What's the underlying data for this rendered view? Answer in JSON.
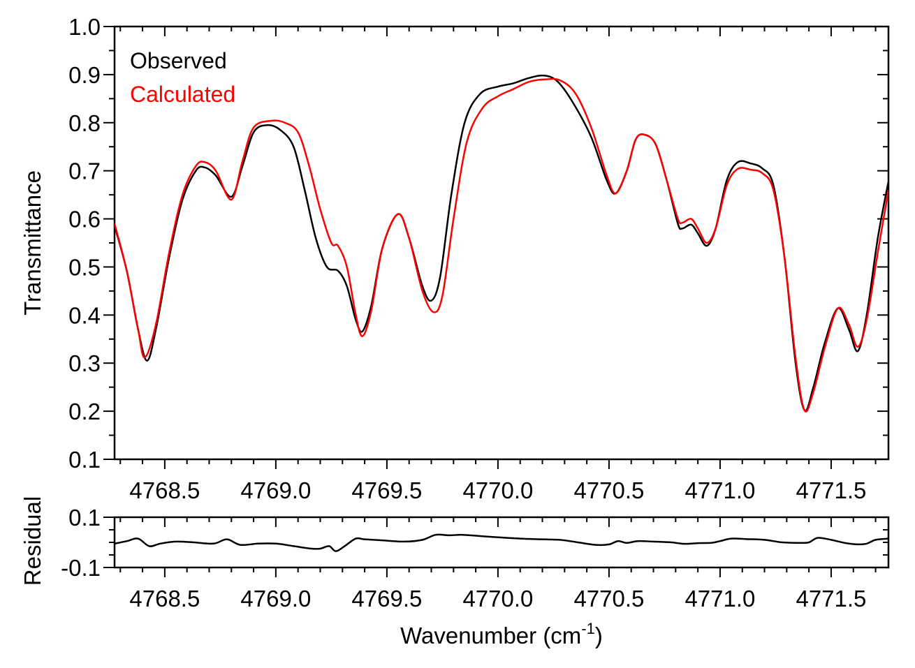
{
  "chart_data": [
    {
      "type": "line",
      "panel": "top",
      "title": "",
      "xlabel": "",
      "ylabel": "Transmittance",
      "xlim": [
        4768.274,
        4771.758
      ],
      "ylim": [
        0.1,
        1.0
      ],
      "x_ticks_major": [
        4768.5,
        4769.0,
        4769.5,
        4770.0,
        4770.5,
        4771.0,
        4771.5
      ],
      "x_tick_labels": [
        "4768.5",
        "4769.0",
        "4769.5",
        "4770.0",
        "4770.5",
        "4771.0",
        "4771.5"
      ],
      "y_ticks_major": [
        0.1,
        0.2,
        0.3,
        0.4,
        0.5,
        0.6,
        0.7,
        0.8,
        0.9,
        1.0
      ],
      "y_tick_labels": [
        "0.1",
        "0.2",
        "0.3",
        "0.4",
        "0.5",
        "0.6",
        "0.7",
        "0.8",
        "0.9",
        "1.0"
      ],
      "grid": false,
      "legend_position": "upper left",
      "series": [
        {
          "name": "Observed",
          "color": "#000000",
          "x": [
            4768.274,
            4768.33,
            4768.38,
            4768.42,
            4768.46,
            4768.52,
            4768.58,
            4768.64,
            4768.68,
            4768.73,
            4768.8,
            4768.85,
            4768.9,
            4768.96,
            4769.02,
            4769.08,
            4769.13,
            4769.18,
            4769.23,
            4769.28,
            4769.32,
            4769.36,
            4769.39,
            4769.43,
            4769.48,
            4769.55,
            4769.6,
            4769.66,
            4769.7,
            4769.74,
            4769.79,
            4769.85,
            4769.92,
            4770.0,
            4770.07,
            4770.14,
            4770.21,
            4770.27,
            4770.34,
            4770.42,
            4770.49,
            4770.53,
            4770.58,
            4770.62,
            4770.66,
            4770.71,
            4770.76,
            4770.81,
            4770.83,
            4770.87,
            4770.9,
            4770.94,
            4770.98,
            4771.03,
            4771.08,
            4771.14,
            4771.19,
            4771.24,
            4771.29,
            4771.34,
            4771.38,
            4771.42,
            4771.47,
            4771.53,
            4771.58,
            4771.62,
            4771.66,
            4771.71,
            4771.758
          ],
          "values": [
            0.586,
            0.49,
            0.37,
            0.305,
            0.37,
            0.52,
            0.64,
            0.7,
            0.707,
            0.69,
            0.646,
            0.71,
            0.78,
            0.795,
            0.785,
            0.75,
            0.66,
            0.56,
            0.5,
            0.492,
            0.46,
            0.39,
            0.366,
            0.42,
            0.54,
            0.61,
            0.56,
            0.46,
            0.43,
            0.48,
            0.65,
            0.8,
            0.86,
            0.875,
            0.882,
            0.893,
            0.898,
            0.885,
            0.84,
            0.77,
            0.68,
            0.653,
            0.7,
            0.765,
            0.775,
            0.755,
            0.68,
            0.59,
            0.58,
            0.588,
            0.57,
            0.544,
            0.58,
            0.68,
            0.718,
            0.715,
            0.705,
            0.67,
            0.52,
            0.3,
            0.202,
            0.25,
            0.34,
            0.414,
            0.37,
            0.325,
            0.4,
            0.56,
            0.678
          ]
        },
        {
          "name": "Calculated",
          "color": "#ff0000",
          "x": [
            4768.274,
            4768.33,
            4768.38,
            4768.41,
            4768.46,
            4768.52,
            4768.58,
            4768.64,
            4768.68,
            4768.73,
            4768.8,
            4768.85,
            4768.9,
            4768.98,
            4769.04,
            4769.1,
            4769.15,
            4769.2,
            4769.25,
            4769.28,
            4769.32,
            4769.36,
            4769.39,
            4769.43,
            4769.48,
            4769.55,
            4769.6,
            4769.66,
            4769.71,
            4769.75,
            4769.8,
            4769.86,
            4769.93,
            4770.0,
            4770.07,
            4770.14,
            4770.21,
            4770.28,
            4770.35,
            4770.42,
            4770.49,
            4770.53,
            4770.58,
            4770.62,
            4770.66,
            4770.71,
            4770.76,
            4770.81,
            4770.83,
            4770.87,
            4770.9,
            4770.94,
            4770.98,
            4771.03,
            4771.08,
            4771.14,
            4771.19,
            4771.24,
            4771.29,
            4771.34,
            4771.38,
            4771.42,
            4771.47,
            4771.53,
            4771.58,
            4771.62,
            4771.66,
            4771.71,
            4771.758
          ],
          "values": [
            0.59,
            0.49,
            0.37,
            0.312,
            0.38,
            0.53,
            0.65,
            0.71,
            0.718,
            0.7,
            0.64,
            0.72,
            0.79,
            0.804,
            0.8,
            0.78,
            0.71,
            0.62,
            0.55,
            0.544,
            0.5,
            0.4,
            0.356,
            0.41,
            0.54,
            0.61,
            0.56,
            0.45,
            0.406,
            0.44,
            0.6,
            0.76,
            0.83,
            0.855,
            0.87,
            0.885,
            0.89,
            0.888,
            0.86,
            0.79,
            0.69,
            0.653,
            0.7,
            0.765,
            0.775,
            0.755,
            0.68,
            0.6,
            0.592,
            0.6,
            0.58,
            0.55,
            0.58,
            0.67,
            0.704,
            0.702,
            0.695,
            0.66,
            0.52,
            0.31,
            0.202,
            0.24,
            0.33,
            0.414,
            0.38,
            0.334,
            0.39,
            0.53,
            0.66
          ]
        }
      ],
      "legend": [
        {
          "label": "Observed",
          "color": "#000000"
        },
        {
          "label": "Calculated",
          "color": "#ff0000"
        }
      ]
    },
    {
      "type": "line",
      "panel": "bottom",
      "title": "",
      "xlabel": "Wavenumber (cm-1)",
      "ylabel": "Residual",
      "xlim": [
        4768.274,
        4771.758
      ],
      "ylim": [
        -0.1,
        0.1
      ],
      "x_ticks_major": [
        4768.5,
        4769.0,
        4769.5,
        4770.0,
        4770.5,
        4771.0,
        4771.5
      ],
      "x_tick_labels": [
        "4768.5",
        "4769.0",
        "4769.5",
        "4770.0",
        "4770.5",
        "4771.0",
        "4771.5"
      ],
      "y_ticks_major": [
        -0.1,
        0.1
      ],
      "y_tick_labels": [
        "-0.1",
        "0.1"
      ],
      "grid": false,
      "series": [
        {
          "name": "Residual",
          "color": "#000000",
          "x": [
            4768.274,
            4768.33,
            4768.38,
            4768.43,
            4768.48,
            4768.55,
            4768.63,
            4768.72,
            4768.78,
            4768.84,
            4768.92,
            4769.0,
            4769.08,
            4769.16,
            4769.2,
            4769.24,
            4769.27,
            4769.31,
            4769.36,
            4769.4,
            4769.48,
            4769.58,
            4769.66,
            4769.72,
            4769.78,
            4769.84,
            4769.92,
            4770.0,
            4770.1,
            4770.2,
            4770.28,
            4770.36,
            4770.44,
            4770.5,
            4770.54,
            4770.58,
            4770.63,
            4770.7,
            4770.78,
            4770.84,
            4770.9,
            4770.96,
            4771.0,
            4771.05,
            4771.12,
            4771.2,
            4771.28,
            4771.36,
            4771.4,
            4771.44,
            4771.5,
            4771.56,
            4771.62,
            4771.66,
            4771.7,
            4771.758
          ],
          "values": [
            -0.005,
            0.005,
            0.015,
            -0.015,
            -0.005,
            0.003,
            0.0,
            -0.005,
            0.012,
            -0.01,
            -0.005,
            -0.005,
            -0.015,
            -0.025,
            -0.025,
            -0.015,
            -0.035,
            -0.015,
            0.015,
            0.012,
            0.008,
            0.003,
            0.01,
            0.03,
            0.028,
            0.03,
            0.025,
            0.02,
            0.015,
            0.012,
            0.01,
            0.0,
            -0.01,
            -0.008,
            0.005,
            -0.002,
            0.005,
            0.003,
            0.0,
            -0.006,
            -0.003,
            -0.002,
            0.005,
            0.015,
            0.013,
            0.01,
            0.0,
            -0.002,
            0.0,
            0.018,
            0.01,
            -0.002,
            -0.008,
            -0.005,
            0.01,
            0.015
          ]
        }
      ]
    }
  ],
  "labels": {
    "y_top": "Transmittance",
    "y_bottom": "Residual",
    "x_bottom_main": "Wavenumber (cm",
    "x_bottom_sup": "-1",
    "x_bottom_close": ")"
  }
}
